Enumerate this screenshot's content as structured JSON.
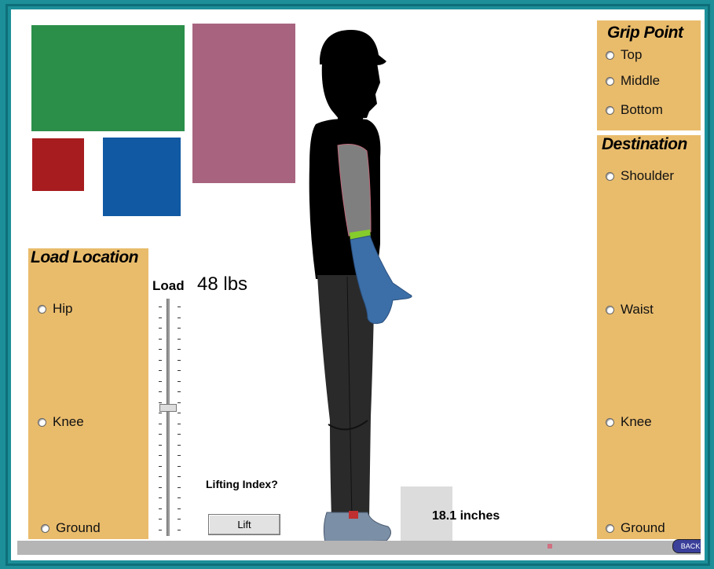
{
  "load_location": {
    "title": "Load Location",
    "options": [
      "Hip",
      "Knee",
      "Ground"
    ]
  },
  "grip_point": {
    "title": "Grip Point",
    "options": [
      "Top",
      "Middle",
      "Bottom"
    ]
  },
  "destination": {
    "title": "Destination",
    "options": [
      "Shoulder",
      "Waist",
      "Knee",
      "Ground"
    ]
  },
  "load": {
    "label": "Load",
    "value_text": "48 lbs",
    "slider_fraction": 0.46
  },
  "lifting": {
    "question": "Lifting Index?",
    "button_label": "Lift"
  },
  "distance_text": "18.1 inches",
  "back_label": "BACK",
  "colors": {
    "panel": "#e9bc6c",
    "green_block": "#2b8f4a",
    "purple_block": "#a8647f",
    "red_block": "#a61c1f",
    "blue_block": "#1159a3",
    "frame": "#1c8f99"
  }
}
